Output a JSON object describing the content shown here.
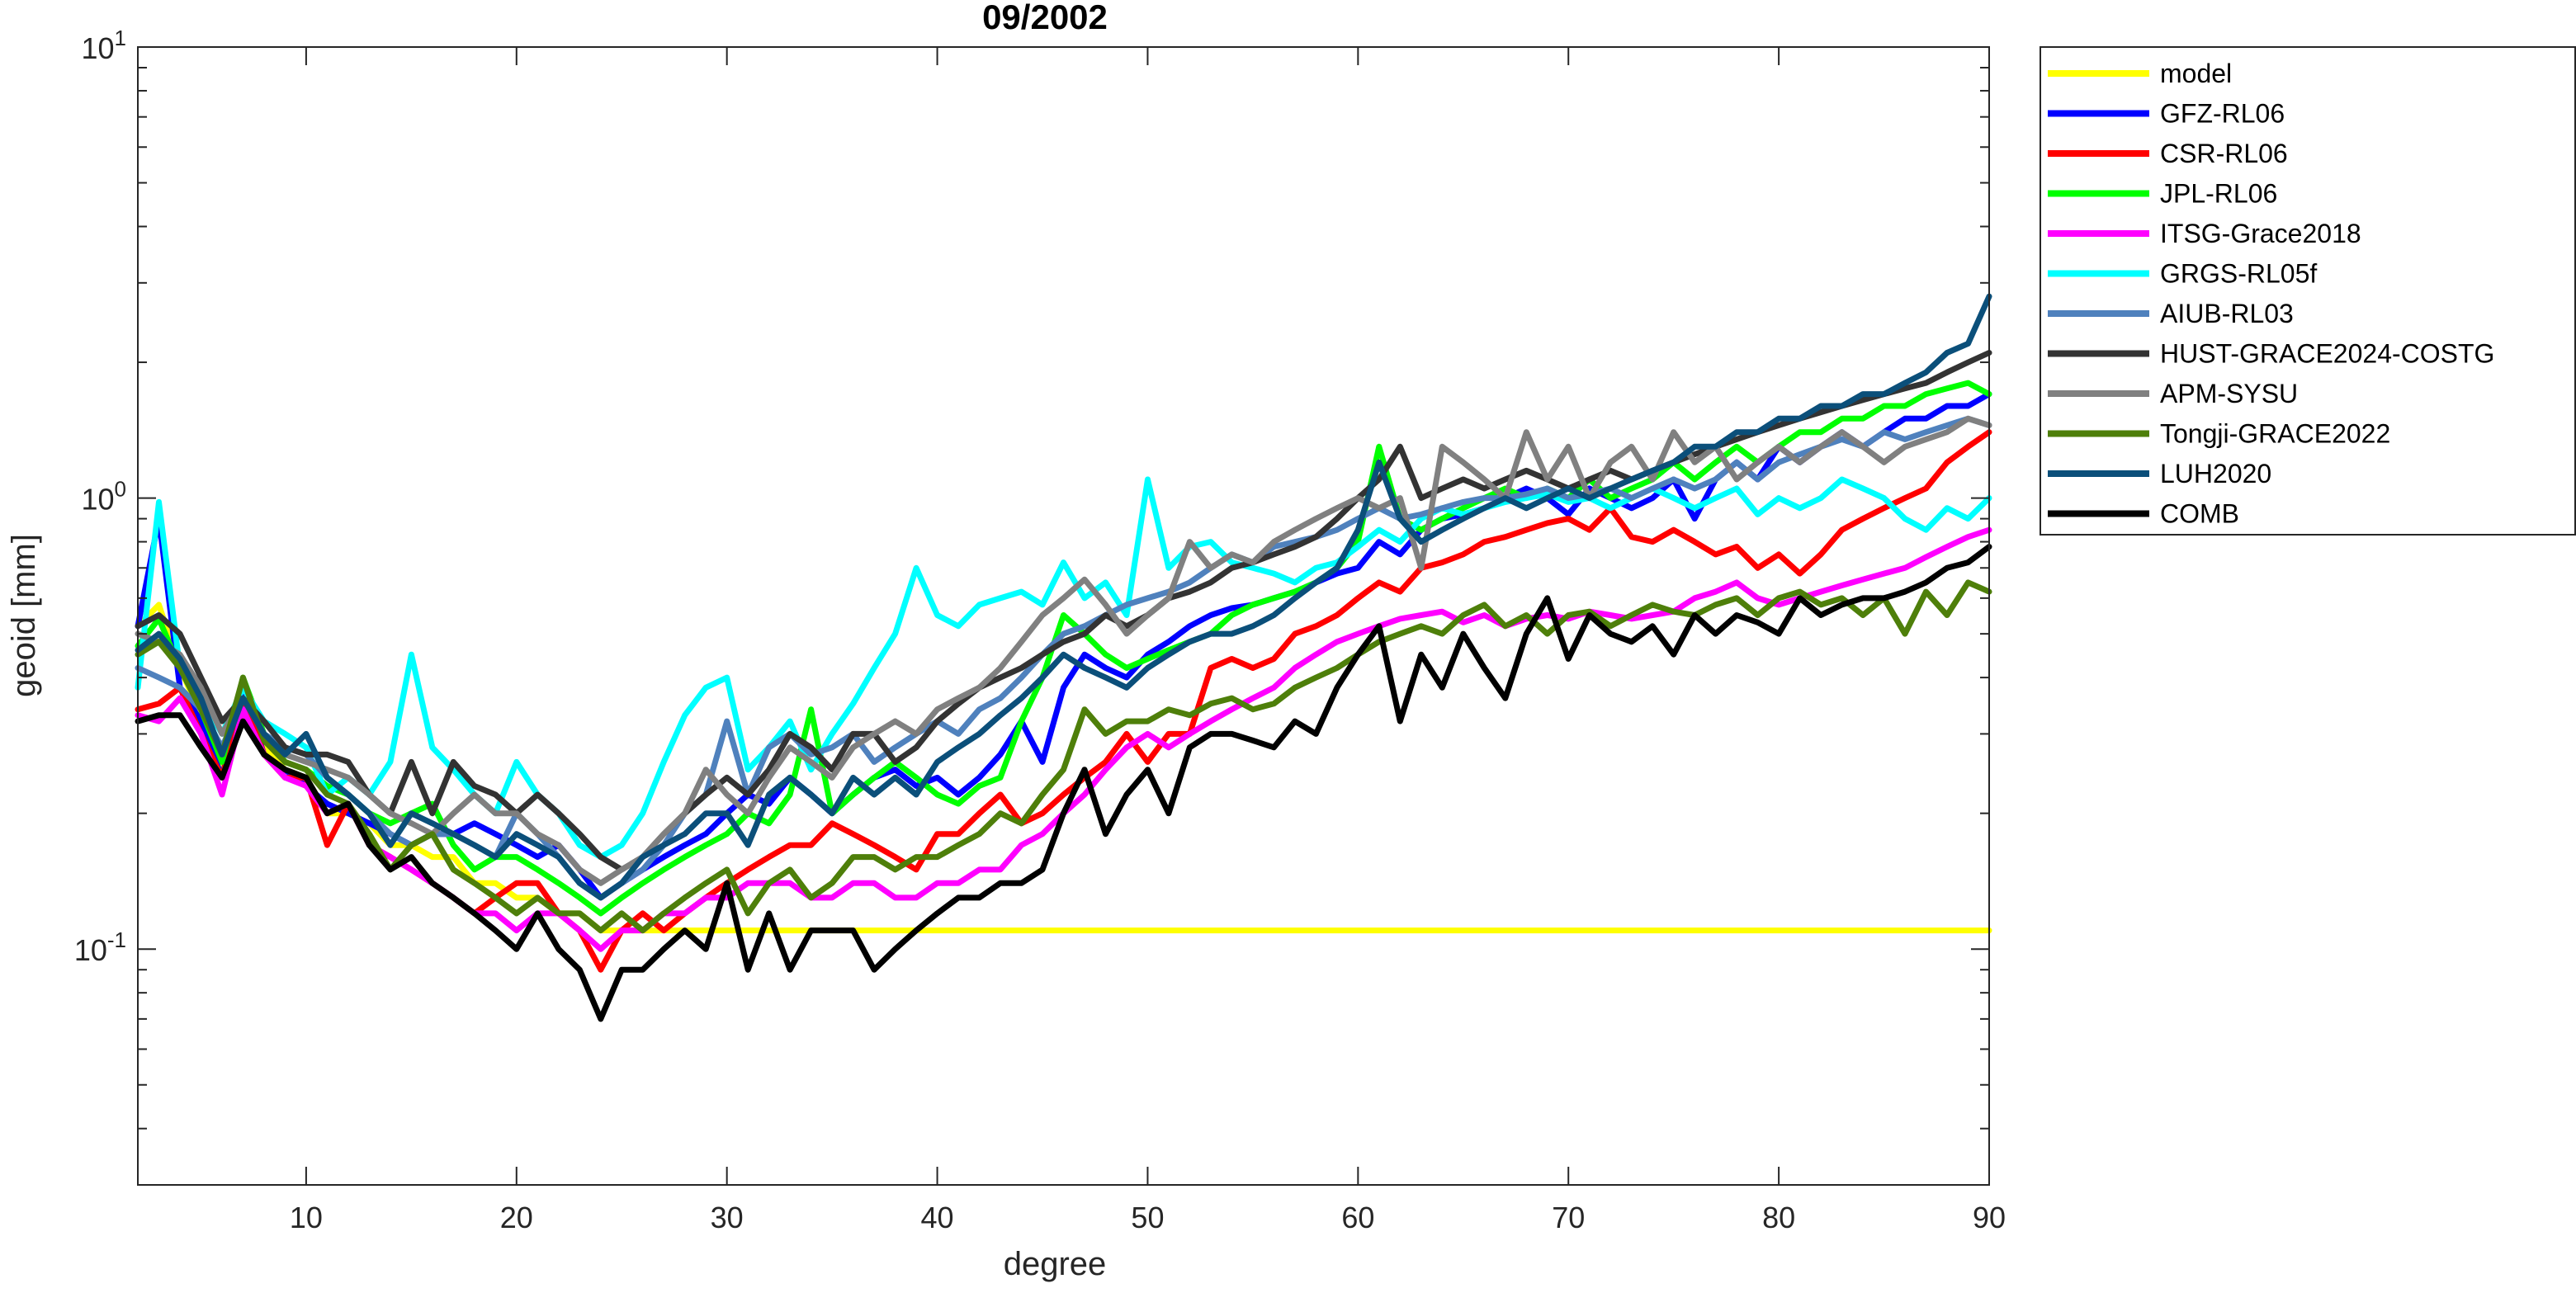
{
  "chart_data": {
    "type": "line",
    "title": "09/2002",
    "xlabel": "degree",
    "ylabel": "geoid [mm]",
    "xlim": [
      2,
      90
    ],
    "ylim": [
      0.03,
      10
    ],
    "yscale": "log",
    "xticks": [
      10,
      20,
      30,
      40,
      50,
      60,
      70,
      80,
      90
    ],
    "xtick_labels": [
      "10",
      "20",
      "30",
      "40",
      "50",
      "60",
      "70",
      "80",
      "90"
    ],
    "yticks": [
      {
        "value": 10,
        "base": "10",
        "exp": "1"
      },
      {
        "value": 1,
        "base": "10",
        "exp": "0"
      },
      {
        "value": 0.1,
        "base": "10",
        "exp": "-1"
      }
    ],
    "grid": false,
    "legend_position": "outside-top-right",
    "x": [
      2,
      3,
      4,
      5,
      6,
      7,
      8,
      9,
      10,
      11,
      12,
      13,
      14,
      15,
      16,
      17,
      18,
      19,
      20,
      21,
      22,
      23,
      24,
      25,
      26,
      27,
      28,
      29,
      30,
      31,
      32,
      33,
      34,
      35,
      36,
      37,
      38,
      39,
      40,
      41,
      42,
      43,
      44,
      45,
      46,
      47,
      48,
      49,
      50,
      51,
      52,
      53,
      54,
      55,
      56,
      57,
      58,
      59,
      60,
      61,
      62,
      63,
      64,
      65,
      66,
      67,
      68,
      69,
      70,
      71,
      72,
      73,
      74,
      75,
      76,
      77,
      78,
      79,
      80,
      81,
      82,
      83,
      84,
      85,
      86,
      87,
      88,
      89,
      90
    ],
    "series": [
      {
        "name": "model",
        "color": "#FFFF00",
        "values": [
          0.52,
          0.58,
          0.42,
          0.33,
          0.25,
          0.38,
          0.28,
          0.25,
          0.24,
          0.2,
          0.2,
          0.19,
          0.17,
          0.17,
          0.16,
          0.16,
          0.14,
          0.14,
          0.13,
          0.13,
          0.12,
          0.12,
          0.11,
          0.11,
          0.11,
          0.11,
          0.11,
          0.11,
          0.11,
          0.11,
          0.11,
          0.11,
          0.11,
          0.11,
          0.11,
          0.11,
          0.11,
          0.11,
          0.11,
          0.11,
          0.11,
          0.11,
          0.11,
          0.11,
          0.11,
          0.11,
          0.11,
          0.11,
          0.11,
          0.11,
          0.11,
          0.11,
          0.11,
          0.11,
          0.11,
          0.11,
          0.11,
          0.11,
          0.11,
          0.11,
          0.11,
          0.11,
          0.11,
          0.11,
          0.11,
          0.11,
          0.11,
          0.11,
          0.11,
          0.11,
          0.11,
          0.11,
          0.11,
          0.11,
          0.11,
          0.11,
          0.11,
          0.11,
          0.11,
          0.11,
          0.11,
          0.11,
          0.11,
          0.11,
          0.11,
          0.11,
          0.11,
          0.11,
          0.11
        ]
      },
      {
        "name": "GFZ-RL06",
        "color": "#0000FF",
        "values": [
          0.52,
          0.9,
          0.38,
          0.32,
          0.24,
          0.38,
          0.27,
          0.25,
          0.23,
          0.21,
          0.2,
          0.19,
          0.18,
          0.17,
          0.18,
          0.18,
          0.19,
          0.18,
          0.17,
          0.16,
          0.17,
          0.15,
          0.13,
          0.14,
          0.15,
          0.16,
          0.17,
          0.18,
          0.2,
          0.22,
          0.21,
          0.24,
          0.22,
          0.2,
          0.22,
          0.24,
          0.25,
          0.23,
          0.24,
          0.22,
          0.24,
          0.27,
          0.32,
          0.26,
          0.38,
          0.45,
          0.42,
          0.4,
          0.45,
          0.48,
          0.52,
          0.55,
          0.57,
          0.58,
          0.6,
          0.62,
          0.65,
          0.68,
          0.7,
          0.8,
          0.75,
          0.85,
          0.9,
          0.92,
          0.95,
          1.0,
          1.05,
          1.0,
          0.92,
          1.05,
          1.0,
          0.95,
          1.0,
          1.1,
          0.9,
          1.1,
          1.2,
          1.1,
          1.3,
          1.2,
          1.3,
          1.4,
          1.3,
          1.4,
          1.5,
          1.5,
          1.6,
          1.6,
          1.7
        ]
      },
      {
        "name": "CSR-RL06",
        "color": "#FF0000",
        "values": [
          0.34,
          0.35,
          0.38,
          0.3,
          0.24,
          0.36,
          0.27,
          0.24,
          0.24,
          0.17,
          0.21,
          0.17,
          0.16,
          0.15,
          0.14,
          0.13,
          0.12,
          0.13,
          0.14,
          0.14,
          0.12,
          0.11,
          0.09,
          0.11,
          0.12,
          0.11,
          0.12,
          0.13,
          0.14,
          0.15,
          0.16,
          0.17,
          0.17,
          0.19,
          0.18,
          0.17,
          0.16,
          0.15,
          0.18,
          0.18,
          0.2,
          0.22,
          0.19,
          0.2,
          0.22,
          0.24,
          0.26,
          0.3,
          0.26,
          0.3,
          0.3,
          0.42,
          0.44,
          0.42,
          0.44,
          0.5,
          0.52,
          0.55,
          0.6,
          0.65,
          0.62,
          0.7,
          0.72,
          0.75,
          0.8,
          0.82,
          0.85,
          0.88,
          0.9,
          0.85,
          0.95,
          0.82,
          0.8,
          0.85,
          0.8,
          0.75,
          0.78,
          0.7,
          0.75,
          0.68,
          0.75,
          0.85,
          0.9,
          0.95,
          1.0,
          1.05,
          1.2,
          1.3,
          1.4
        ]
      },
      {
        "name": "JPL-RL06",
        "color": "#00FF00",
        "values": [
          0.47,
          0.54,
          0.42,
          0.34,
          0.26,
          0.4,
          0.3,
          0.26,
          0.25,
          0.23,
          0.22,
          0.2,
          0.19,
          0.2,
          0.21,
          0.17,
          0.15,
          0.16,
          0.16,
          0.15,
          0.14,
          0.13,
          0.12,
          0.13,
          0.14,
          0.15,
          0.16,
          0.17,
          0.18,
          0.2,
          0.19,
          0.22,
          0.34,
          0.2,
          0.22,
          0.24,
          0.26,
          0.24,
          0.22,
          0.21,
          0.23,
          0.24,
          0.32,
          0.4,
          0.55,
          0.5,
          0.45,
          0.42,
          0.44,
          0.46,
          0.48,
          0.5,
          0.55,
          0.58,
          0.6,
          0.62,
          0.65,
          0.7,
          0.8,
          1.3,
          0.9,
          0.85,
          0.9,
          0.95,
          1.0,
          1.05,
          1.0,
          1.05,
          1.0,
          1.1,
          1.0,
          1.05,
          1.1,
          1.2,
          1.1,
          1.2,
          1.3,
          1.2,
          1.3,
          1.4,
          1.4,
          1.5,
          1.5,
          1.6,
          1.6,
          1.7,
          1.75,
          1.8,
          1.7
        ]
      },
      {
        "name": "ITSG-Grace2018",
        "color": "#FF00FF",
        "values": [
          0.33,
          0.32,
          0.36,
          0.3,
          0.22,
          0.34,
          0.27,
          0.24,
          0.23,
          0.2,
          0.21,
          0.17,
          0.16,
          0.15,
          0.14,
          0.13,
          0.12,
          0.12,
          0.11,
          0.12,
          0.12,
          0.11,
          0.1,
          0.11,
          0.11,
          0.12,
          0.12,
          0.13,
          0.13,
          0.14,
          0.14,
          0.14,
          0.13,
          0.13,
          0.14,
          0.14,
          0.13,
          0.13,
          0.14,
          0.14,
          0.15,
          0.15,
          0.17,
          0.18,
          0.2,
          0.22,
          0.25,
          0.28,
          0.3,
          0.28,
          0.3,
          0.32,
          0.34,
          0.36,
          0.38,
          0.42,
          0.45,
          0.48,
          0.5,
          0.52,
          0.54,
          0.55,
          0.56,
          0.53,
          0.55,
          0.52,
          0.54,
          0.55,
          0.54,
          0.56,
          0.55,
          0.54,
          0.55,
          0.56,
          0.6,
          0.62,
          0.65,
          0.6,
          0.58,
          0.6,
          0.62,
          0.64,
          0.66,
          0.68,
          0.7,
          0.74,
          0.78,
          0.82,
          0.85
        ]
      },
      {
        "name": "GRGS-RL05f",
        "color": "#00FFFF",
        "values": [
          0.38,
          0.98,
          0.42,
          0.36,
          0.3,
          0.38,
          0.32,
          0.3,
          0.28,
          0.22,
          0.24,
          0.22,
          0.26,
          0.45,
          0.28,
          0.25,
          0.22,
          0.2,
          0.26,
          0.22,
          0.2,
          0.17,
          0.16,
          0.17,
          0.2,
          0.26,
          0.33,
          0.38,
          0.4,
          0.25,
          0.28,
          0.32,
          0.25,
          0.3,
          0.35,
          0.42,
          0.5,
          0.7,
          0.55,
          0.52,
          0.58,
          0.6,
          0.62,
          0.58,
          0.72,
          0.6,
          0.65,
          0.55,
          1.1,
          0.7,
          0.78,
          0.8,
          0.72,
          0.7,
          0.68,
          0.65,
          0.7,
          0.72,
          0.78,
          0.85,
          0.8,
          0.9,
          0.95,
          0.92,
          0.95,
          0.98,
          1.0,
          1.02,
          0.98,
          1.0,
          0.95,
          1.0,
          1.05,
          1.0,
          0.95,
          1.0,
          1.05,
          0.92,
          1.0,
          0.95,
          1.0,
          1.1,
          1.05,
          1.0,
          0.9,
          0.85,
          0.95,
          0.9,
          1.0
        ]
      },
      {
        "name": "AIUB-RL03",
        "color": "#4F81BD",
        "values": [
          0.42,
          0.4,
          0.38,
          0.34,
          0.28,
          0.36,
          0.3,
          0.28,
          0.27,
          0.24,
          0.22,
          0.2,
          0.18,
          0.17,
          0.18,
          0.18,
          0.17,
          0.16,
          0.2,
          0.18,
          0.16,
          0.14,
          0.13,
          0.14,
          0.15,
          0.17,
          0.2,
          0.22,
          0.32,
          0.22,
          0.28,
          0.3,
          0.27,
          0.28,
          0.3,
          0.26,
          0.28,
          0.3,
          0.32,
          0.3,
          0.34,
          0.36,
          0.4,
          0.45,
          0.5,
          0.52,
          0.55,
          0.58,
          0.6,
          0.62,
          0.65,
          0.7,
          0.75,
          0.72,
          0.78,
          0.8,
          0.82,
          0.85,
          0.9,
          0.95,
          0.9,
          0.92,
          0.95,
          0.98,
          1.0,
          1.0,
          1.02,
          1.05,
          1.0,
          1.02,
          1.05,
          1.0,
          1.05,
          1.1,
          1.05,
          1.1,
          1.2,
          1.1,
          1.2,
          1.25,
          1.3,
          1.35,
          1.3,
          1.4,
          1.35,
          1.4,
          1.45,
          1.5,
          1.45
        ]
      },
      {
        "name": "HUST-GRACE2024-COSTG",
        "color": "#333333",
        "values": [
          0.52,
          0.55,
          0.5,
          0.4,
          0.32,
          0.36,
          0.32,
          0.28,
          0.27,
          0.27,
          0.26,
          0.22,
          0.2,
          0.26,
          0.2,
          0.26,
          0.23,
          0.22,
          0.2,
          0.22,
          0.2,
          0.18,
          0.16,
          0.15,
          0.16,
          0.18,
          0.2,
          0.22,
          0.24,
          0.22,
          0.25,
          0.3,
          0.28,
          0.25,
          0.3,
          0.3,
          0.26,
          0.28,
          0.32,
          0.35,
          0.38,
          0.4,
          0.42,
          0.45,
          0.48,
          0.5,
          0.55,
          0.52,
          0.55,
          0.6,
          0.62,
          0.65,
          0.7,
          0.72,
          0.75,
          0.78,
          0.82,
          0.9,
          1.0,
          1.1,
          1.3,
          1.0,
          1.05,
          1.1,
          1.05,
          1.1,
          1.15,
          1.1,
          1.05,
          1.1,
          1.15,
          1.1,
          1.15,
          1.2,
          1.25,
          1.3,
          1.35,
          1.4,
          1.45,
          1.5,
          1.55,
          1.6,
          1.65,
          1.7,
          1.75,
          1.8,
          1.9,
          2.0,
          2.1
        ]
      },
      {
        "name": "APM-SYSU",
        "color": "#808080",
        "values": [
          0.5,
          0.48,
          0.45,
          0.38,
          0.3,
          0.36,
          0.3,
          0.27,
          0.26,
          0.25,
          0.24,
          0.22,
          0.2,
          0.19,
          0.18,
          0.2,
          0.22,
          0.2,
          0.2,
          0.18,
          0.17,
          0.15,
          0.14,
          0.15,
          0.16,
          0.18,
          0.2,
          0.25,
          0.22,
          0.2,
          0.24,
          0.28,
          0.26,
          0.24,
          0.28,
          0.3,
          0.32,
          0.3,
          0.34,
          0.36,
          0.38,
          0.42,
          0.48,
          0.55,
          0.6,
          0.66,
          0.58,
          0.5,
          0.55,
          0.6,
          0.8,
          0.7,
          0.75,
          0.72,
          0.8,
          0.85,
          0.9,
          0.95,
          1.0,
          0.95,
          1.0,
          0.7,
          1.3,
          1.2,
          1.1,
          1.0,
          1.4,
          1.1,
          1.3,
          1.0,
          1.2,
          1.3,
          1.1,
          1.4,
          1.2,
          1.3,
          1.1,
          1.2,
          1.3,
          1.2,
          1.3,
          1.4,
          1.3,
          1.2,
          1.3,
          1.35,
          1.4,
          1.5,
          1.45
        ]
      },
      {
        "name": "Tongji-GRACE2022",
        "color": "#4E7F0A",
        "values": [
          0.45,
          0.48,
          0.42,
          0.34,
          0.27,
          0.4,
          0.29,
          0.26,
          0.25,
          0.22,
          0.21,
          0.18,
          0.15,
          0.17,
          0.18,
          0.15,
          0.14,
          0.13,
          0.12,
          0.13,
          0.12,
          0.12,
          0.11,
          0.12,
          0.11,
          0.12,
          0.13,
          0.14,
          0.15,
          0.12,
          0.14,
          0.15,
          0.13,
          0.14,
          0.16,
          0.16,
          0.15,
          0.16,
          0.16,
          0.17,
          0.18,
          0.2,
          0.19,
          0.22,
          0.25,
          0.34,
          0.3,
          0.32,
          0.32,
          0.34,
          0.33,
          0.35,
          0.36,
          0.34,
          0.35,
          0.38,
          0.4,
          0.42,
          0.45,
          0.48,
          0.5,
          0.52,
          0.5,
          0.55,
          0.58,
          0.52,
          0.55,
          0.5,
          0.55,
          0.56,
          0.52,
          0.55,
          0.58,
          0.56,
          0.55,
          0.58,
          0.6,
          0.55,
          0.6,
          0.62,
          0.58,
          0.6,
          0.55,
          0.6,
          0.5,
          0.62,
          0.55,
          0.65,
          0.62
        ]
      },
      {
        "name": "LUH2020",
        "color": "#0B4F7A",
        "values": [
          0.46,
          0.5,
          0.44,
          0.36,
          0.27,
          0.36,
          0.3,
          0.27,
          0.3,
          0.24,
          0.22,
          0.2,
          0.17,
          0.2,
          0.19,
          0.18,
          0.17,
          0.16,
          0.18,
          0.17,
          0.16,
          0.14,
          0.13,
          0.14,
          0.16,
          0.17,
          0.18,
          0.2,
          0.2,
          0.17,
          0.22,
          0.24,
          0.22,
          0.2,
          0.24,
          0.22,
          0.24,
          0.22,
          0.26,
          0.28,
          0.3,
          0.33,
          0.36,
          0.4,
          0.45,
          0.42,
          0.4,
          0.38,
          0.42,
          0.45,
          0.48,
          0.5,
          0.5,
          0.52,
          0.55,
          0.6,
          0.65,
          0.7,
          0.85,
          1.2,
          0.9,
          0.8,
          0.85,
          0.9,
          0.95,
          1.0,
          0.95,
          1.0,
          1.05,
          1.0,
          1.05,
          1.1,
          1.15,
          1.2,
          1.3,
          1.3,
          1.4,
          1.4,
          1.5,
          1.5,
          1.6,
          1.6,
          1.7,
          1.7,
          1.8,
          1.9,
          2.1,
          2.2,
          2.8
        ]
      },
      {
        "name": "COMB",
        "color": "#000000",
        "values": [
          0.32,
          0.33,
          0.33,
          0.28,
          0.24,
          0.32,
          0.27,
          0.25,
          0.24,
          0.2,
          0.21,
          0.17,
          0.15,
          0.16,
          0.14,
          0.13,
          0.12,
          0.11,
          0.1,
          0.12,
          0.1,
          0.09,
          0.07,
          0.09,
          0.09,
          0.1,
          0.11,
          0.1,
          0.14,
          0.09,
          0.12,
          0.09,
          0.11,
          0.11,
          0.11,
          0.09,
          0.1,
          0.11,
          0.12,
          0.13,
          0.13,
          0.14,
          0.14,
          0.15,
          0.2,
          0.25,
          0.18,
          0.22,
          0.25,
          0.2,
          0.28,
          0.3,
          0.3,
          0.29,
          0.28,
          0.32,
          0.3,
          0.38,
          0.45,
          0.52,
          0.32,
          0.45,
          0.38,
          0.5,
          0.42,
          0.36,
          0.5,
          0.6,
          0.44,
          0.55,
          0.5,
          0.48,
          0.52,
          0.45,
          0.55,
          0.5,
          0.55,
          0.53,
          0.5,
          0.6,
          0.55,
          0.58,
          0.6,
          0.6,
          0.62,
          0.65,
          0.7,
          0.72,
          0.78
        ]
      }
    ]
  }
}
